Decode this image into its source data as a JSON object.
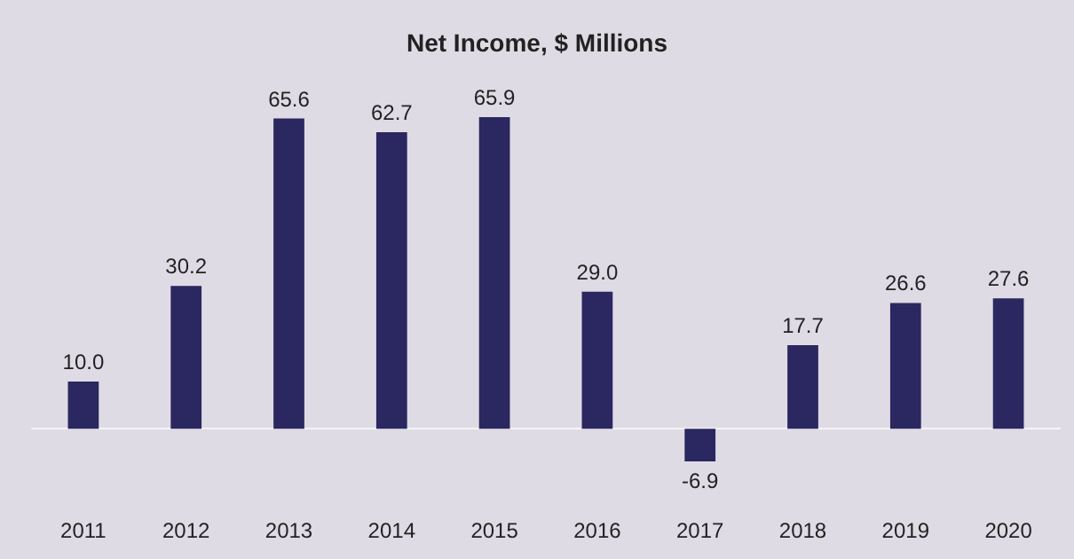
{
  "chart_data": {
    "type": "bar",
    "title": "Net Income, $ Millions",
    "categories": [
      "2011",
      "2012",
      "2013",
      "2014",
      "2015",
      "2016",
      "2017",
      "2018",
      "2019",
      "2020"
    ],
    "values": [
      10.0,
      30.2,
      65.6,
      62.7,
      65.9,
      29.0,
      -6.9,
      17.7,
      26.6,
      27.6
    ],
    "value_labels": [
      "10.0",
      "30.2",
      "65.6",
      "62.7",
      "65.9",
      "29.0",
      "-6.9",
      "17.7",
      "26.6",
      "27.6"
    ],
    "color": "#2b2760"
  }
}
